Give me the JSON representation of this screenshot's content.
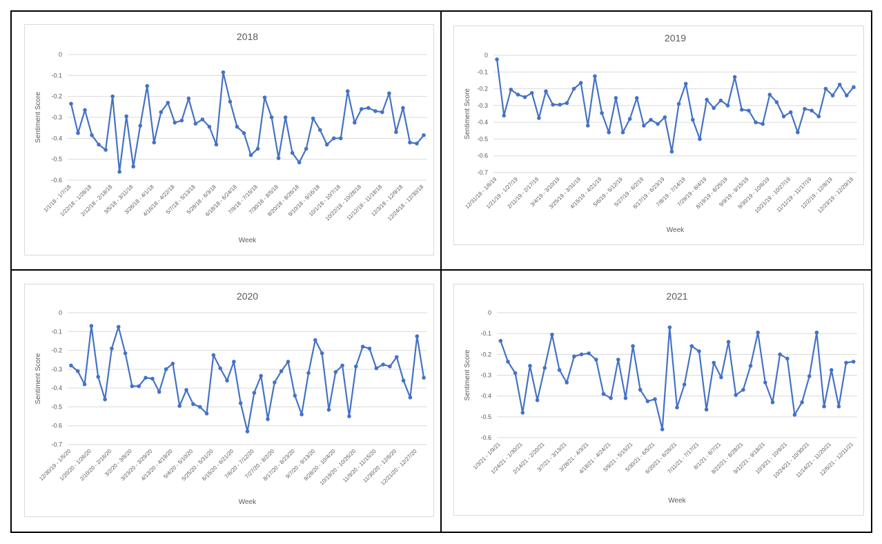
{
  "colors": {
    "series": "#4472c4",
    "gridline": "#d9d9d9",
    "text": "#595959",
    "frame": "#000000"
  },
  "chart_data": [
    {
      "type": "line",
      "title": "2018",
      "xlabel": "Week",
      "ylabel": "Sentiment Score",
      "ylim": [
        -0.6,
        0
      ],
      "yticks": [
        "0",
        "-0.1",
        "-0.2",
        "-0.3",
        "-0.4",
        "-0.5",
        "-0.6"
      ],
      "grid": true,
      "categories": [
        "1/1/18 - 1/7/18",
        "1/8/18 - 1/14/18",
        "1/15/18 - 1/21/18",
        "1/22/18 - 1/28/18",
        "1/29/18 - 2/4/18",
        "2/5/18 - 2/11/18",
        "2/12/18 - 2/18/18",
        "2/19/18 - 2/25/18",
        "2/26/18 - 3/4/18",
        "3/5/18 - 3/11/18",
        "3/12/18 - 3/18/18",
        "3/19/18 - 3/25/18",
        "3/26/18 - 4/1/18",
        "4/2/18 - 4/8/18",
        "4/9/18 - 4/15/18",
        "4/16/18 - 4/22/18",
        "4/23/18 - 4/29/18",
        "4/30/18 - 5/6/18",
        "5/7/18 - 5/13/18",
        "5/14/18 - 5/20/18",
        "5/21/18 - 5/27/18",
        "5/28/18 - 6/3/18",
        "6/4/18 - 6/10/18",
        "6/11/18 - 6/17/18",
        "6/18/18 - 6/24/18",
        "6/25/18 - 7/1/18",
        "7/2/18 - 7/8/18",
        "7/9/18 - 7/15/18",
        "7/16/18 - 7/22/18",
        "7/23/18 - 7/29/18",
        "7/30/18 - 8/5/18",
        "8/6/18 - 8/12/18",
        "8/13/18 - 8/19/18",
        "8/20/18 - 8/26/18",
        "8/27/18 - 9/2/18",
        "9/3/18 - 9/9/18",
        "9/10/18 - 9/16/18",
        "9/17/18 - 9/23/18",
        "9/24/18 - 9/30/18",
        "10/1/18 - 10/7/18",
        "10/8/18 - 10/14/18",
        "10/15/18 - 10/21/18",
        "10/22/18 - 10/28/18",
        "10/29/18 - 11/4/18",
        "11/5/18 - 11/11/18",
        "11/12/18 - 11/18/18",
        "11/19/18 - 11/25/18",
        "11/26/18 - 12/2/18",
        "12/3/18 - 12/9/18",
        "12/10/18 - 12/16/18",
        "12/17/18 - 12/23/18",
        "12/24/18 - 12/30/18"
      ],
      "label_every": 3,
      "values": [
        -0.235,
        -0.375,
        -0.265,
        -0.385,
        -0.43,
        -0.455,
        -0.2,
        -0.56,
        -0.295,
        -0.535,
        -0.34,
        -0.15,
        -0.42,
        -0.275,
        -0.23,
        -0.325,
        -0.315,
        -0.21,
        -0.33,
        -0.31,
        -0.345,
        -0.43,
        -0.085,
        -0.225,
        -0.345,
        -0.375,
        -0.48,
        -0.45,
        -0.205,
        -0.3,
        -0.495,
        -0.3,
        -0.47,
        -0.515,
        -0.45,
        -0.305,
        -0.36,
        -0.43,
        -0.4,
        -0.4,
        -0.175,
        -0.325,
        -0.26,
        -0.255,
        -0.27,
        -0.275,
        -0.185,
        -0.37,
        -0.255,
        -0.42,
        -0.425,
        -0.385
      ]
    },
    {
      "type": "line",
      "title": "2019",
      "xlabel": "Week",
      "ylabel": "Sentiment Score",
      "ylim": [
        -0.7,
        0
      ],
      "yticks": [
        "0",
        "-0.1",
        "-0.2",
        "-0.3",
        "-0.4",
        "-0.5",
        "-0.6",
        "-0.7"
      ],
      "grid": true,
      "categories": [
        "12/31/18 - 1/6/19",
        "1/7/19 - 1/13/19",
        "1/14/19 - 1/20/19",
        "1/21/19 - 1/27/19",
        "1/28/19 - 2/3/19",
        "2/4/19 - 2/10/19",
        "2/11/19 - 2/17/19",
        "2/18/19 - 2/24/19",
        "2/25/19 - 3/3/19",
        "3/4/19 - 3/10/19",
        "3/11/19 - 3/17/19",
        "3/18/19 - 3/24/19",
        "3/25/19 - 3/31/19",
        "4/1/19 - 4/7/19",
        "4/8/19 - 4/14/19",
        "4/15/19 - 4/21/19",
        "4/22/19 - 4/28/19",
        "4/29/19 - 5/5/19",
        "5/6/19 - 5/12/19",
        "5/13/19 - 5/19/19",
        "5/20/19 - 5/26/19",
        "5/27/19 - 6/2/19",
        "6/3/19 - 6/9/19",
        "6/10/19 - 6/16/19",
        "6/17/19 - 6/23/19",
        "6/24/19 - 6/30/19",
        "7/1/19 - 7/7/19",
        "7/8/19 - 7/14/19",
        "7/15/19 - 7/21/19",
        "7/22/19 - 7/28/19",
        "7/29/19 - 8/4/19",
        "8/5/19 - 8/11/19",
        "8/12/19 - 8/18/19",
        "8/19/19 - 8/25/19",
        "8/26/19 - 9/1/19",
        "9/2/19 - 9/8/19",
        "9/9/19 - 9/15/19",
        "9/16/19 - 9/22/19",
        "9/23/19 - 9/29/19",
        "9/30/19 - 10/6/19",
        "10/7/19 - 10/13/19",
        "10/14/19 - 10/20/19",
        "10/21/19 - 10/27/19",
        "10/28/19 - 11/3/19",
        "11/4/19 - 11/10/19",
        "11/11/19 - 11/17/19",
        "11/18/19 - 11/24/19",
        "11/25/19 - 12/1/19",
        "12/2/19 - 12/8/19",
        "12/9/19 - 12/15/19",
        "12/16/19 - 12/22/19",
        "12/23/19 - 12/29/19"
      ],
      "label_every": 3,
      "values": [
        -0.025,
        -0.36,
        -0.205,
        -0.235,
        -0.25,
        -0.225,
        -0.375,
        -0.215,
        -0.295,
        -0.295,
        -0.285,
        -0.2,
        -0.165,
        -0.42,
        -0.125,
        -0.345,
        -0.46,
        -0.255,
        -0.46,
        -0.38,
        -0.255,
        -0.42,
        -0.385,
        -0.41,
        -0.37,
        -0.575,
        -0.29,
        -0.17,
        -0.385,
        -0.5,
        -0.265,
        -0.315,
        -0.27,
        -0.3,
        -0.13,
        -0.325,
        -0.33,
        -0.4,
        -0.41,
        -0.235,
        -0.28,
        -0.365,
        -0.34,
        -0.46,
        -0.32,
        -0.33,
        -0.365,
        -0.2,
        -0.24,
        -0.175,
        -0.24,
        -0.19
      ]
    },
    {
      "type": "line",
      "title": "2020",
      "xlabel": "Week",
      "ylabel": "Sentiment Score",
      "ylim": [
        -0.7,
        0
      ],
      "yticks": [
        "0",
        "-0.1",
        "-0.2",
        "-0.3",
        "-0.4",
        "-0.5",
        "-0.6",
        "-0.7"
      ],
      "grid": true,
      "categories": [
        "12/30/19 - 1/5/20",
        "1/6/20 - 1/12/20",
        "1/13/20 - 1/19/20",
        "1/20/20 - 1/26/20",
        "1/27/20 - 2/2/20",
        "2/3/20 - 2/9/20",
        "2/10/20 - 2/16/20",
        "2/17/20 - 2/23/20",
        "2/24/20 - 3/1/20",
        "3/2/20 - 3/8/20",
        "3/9/20 - 3/15/20",
        "3/16/20 - 3/22/20",
        "3/23/20 - 3/29/20",
        "3/30/20 - 4/5/20",
        "4/6/20 - 4/12/20",
        "4/13/20 - 4/19/20",
        "4/20/20 - 4/26/20",
        "4/27/20 - 5/3/20",
        "5/4/20 - 5/10/20",
        "5/11/20 - 5/17/20",
        "5/18/20 - 5/24/20",
        "5/25/20 - 5/31/20",
        "6/1/20 - 6/7/20",
        "6/8/20 - 6/14/20",
        "6/15/20 - 6/21/20",
        "6/22/20 - 6/28/20",
        "6/29/20 - 7/5/20",
        "7/6/20 - 7/12/20",
        "7/13/20 - 7/19/20",
        "7/20/20 - 7/26/20",
        "7/27/20 - 8/2/20",
        "8/3/20 - 8/9/20",
        "8/10/20 - 8/16/20",
        "8/17/20 - 8/23/20",
        "8/24/20 - 8/30/20",
        "8/31/20 - 9/6/20",
        "9/7/20 - 9/13/20",
        "9/14/20 - 9/20/20",
        "9/21/20 - 9/27/20",
        "9/28/20 - 10/4/20",
        "10/5/20 - 10/11/20",
        "10/12/20 - 10/18/20",
        "10/19/20 - 10/25/20",
        "10/26/20 - 11/1/20",
        "11/2/20 - 11/8/20",
        "11/9/20 - 11/15/20",
        "11/16/20 - 11/22/20",
        "11/23/20 - 11/29/20",
        "11/30/20 - 12/6/20",
        "12/7/20 - 12/13/20",
        "12/14/20 - 12/20/20",
        "12/21/20 - 12/27/20",
        "12/28/20 - 1/3/21"
      ],
      "label_every": 3,
      "values": [
        -0.28,
        -0.31,
        -0.38,
        -0.07,
        -0.34,
        -0.46,
        -0.19,
        -0.075,
        -0.215,
        -0.39,
        -0.39,
        -0.345,
        -0.35,
        -0.42,
        -0.3,
        -0.27,
        -0.495,
        -0.41,
        -0.485,
        -0.5,
        -0.535,
        -0.225,
        -0.295,
        -0.36,
        -0.26,
        -0.48,
        -0.63,
        -0.425,
        -0.335,
        -0.565,
        -0.37,
        -0.31,
        -0.26,
        -0.44,
        -0.54,
        -0.32,
        -0.145,
        -0.215,
        -0.515,
        -0.315,
        -0.28,
        -0.55,
        -0.285,
        -0.18,
        -0.19,
        -0.295,
        -0.275,
        -0.285,
        -0.235,
        -0.36,
        -0.45,
        -0.125,
        -0.345
      ]
    },
    {
      "type": "line",
      "title": "2021",
      "xlabel": "Week",
      "ylabel": "Sentiment Score",
      "ylim": [
        -0.6,
        0
      ],
      "yticks": [
        "0",
        "-0.1",
        "-0.2",
        "-0.3",
        "-0.4",
        "-0.5",
        "-0.6"
      ],
      "grid": true,
      "categories": [
        "1/3/21 - 1/9/21",
        "1/10/21 - 1/16/21",
        "1/17/21 - 1/23/21",
        "1/24/21 - 1/30/21",
        "1/31/21 - 2/6/21",
        "2/7/21 - 2/13/21",
        "2/14/21 - 2/20/21",
        "2/21/21 - 2/27/21",
        "2/28/21 - 3/6/21",
        "3/7/21 - 3/13/21",
        "3/14/21 - 3/20/21",
        "3/21/21 - 3/27/21",
        "3/28/21 - 4/3/21",
        "4/4/21 - 4/10/21",
        "4/11/21 - 4/17/21",
        "4/18/21 - 4/24/21",
        "4/25/21 - 5/1/21",
        "5/2/21 - 5/8/21",
        "5/9/21 - 5/15/21",
        "5/16/21 - 5/22/21",
        "5/23/21 - 5/29/21",
        "5/30/21 - 6/5/21",
        "6/6/21 - 6/12/21",
        "6/13/21 - 6/19/21",
        "6/20/21 - 6/26/21",
        "6/27/21 - 7/3/21",
        "7/4/21 - 7/10/21",
        "7/11/21 - 7/17/21",
        "7/18/21 - 7/24/21",
        "7/25/21 - 7/31/21",
        "8/1/21 - 8/7/21",
        "8/8/21 - 8/14/21",
        "8/15/21 - 8/21/21",
        "8/22/21 - 8/28/21",
        "8/29/21 - 9/4/21",
        "9/5/21 - 9/11/21",
        "9/12/21 - 9/18/21",
        "9/19/21 - 9/25/21",
        "9/26/21 - 10/2/21",
        "10/3/21 - 10/9/21",
        "10/10/21 - 10/16/21",
        "10/17/21 - 10/23/21",
        "10/24/21 - 10/30/21",
        "10/31/21 - 11/6/21",
        "11/7/21 - 11/13/21",
        "11/14/21 - 11/20/21",
        "11/21/21 - 11/27/21",
        "11/28/21 - 12/4/21",
        "12/5/21 - 12/11/21"
      ],
      "label_every": 3,
      "values": [
        -0.135,
        -0.235,
        -0.29,
        -0.48,
        -0.255,
        -0.42,
        -0.265,
        -0.105,
        -0.275,
        -0.335,
        -0.21,
        -0.2,
        -0.195,
        -0.225,
        -0.39,
        -0.41,
        -0.225,
        -0.41,
        -0.16,
        -0.37,
        -0.425,
        -0.415,
        -0.56,
        -0.07,
        -0.455,
        -0.345,
        -0.16,
        -0.185,
        -0.465,
        -0.24,
        -0.31,
        -0.14,
        -0.395,
        -0.37,
        -0.255,
        -0.095,
        -0.335,
        -0.43,
        -0.2,
        -0.22,
        -0.49,
        -0.43,
        -0.305,
        -0.095,
        -0.45,
        -0.275,
        -0.45,
        -0.24,
        -0.235
      ]
    }
  ]
}
